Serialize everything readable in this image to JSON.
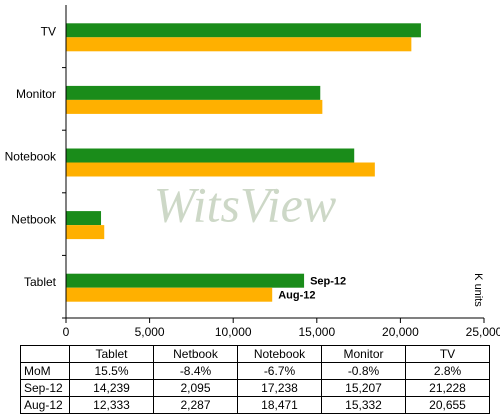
{
  "chart_data": {
    "type": "hbar",
    "categories": [
      "Tablet",
      "Netbook",
      "Notebook",
      "Monitor",
      "TV"
    ],
    "series": [
      {
        "name": "Sep-12",
        "color": "#1a8c1a",
        "values": [
          14239,
          2095,
          17238,
          15207,
          21228
        ]
      },
      {
        "name": "Aug-12",
        "color": "#ffb000",
        "values": [
          12333,
          2287,
          18471,
          15332,
          20655
        ]
      }
    ],
    "xlim": [
      0,
      25000
    ],
    "xticks": [
      0,
      {
        "value": 5000,
        "label": "5,000"
      },
      {
        "value": 10000,
        "label": "10,000"
      },
      {
        "value": 15000,
        "label": "15,000"
      },
      {
        "value": 20000,
        "label": "20,000"
      },
      {
        "value": 25000,
        "label": "25,000"
      }
    ],
    "x_label": "K units",
    "watermark": "WitsView"
  },
  "table": {
    "columns": [
      "Tablet",
      "Netbook",
      "Notebook",
      "Monitor",
      "TV"
    ],
    "rows": [
      [
        "MoM",
        "15.5%",
        "-8.4%",
        "-6.7%",
        "-0.8%",
        "2.8%"
      ],
      [
        "Sep-12",
        "14,239",
        "2,095",
        "17,238",
        "15,207",
        "21,228"
      ],
      [
        "Aug-12",
        "12,333",
        "2,287",
        "18,471",
        "15,332",
        "20,655"
      ]
    ]
  }
}
